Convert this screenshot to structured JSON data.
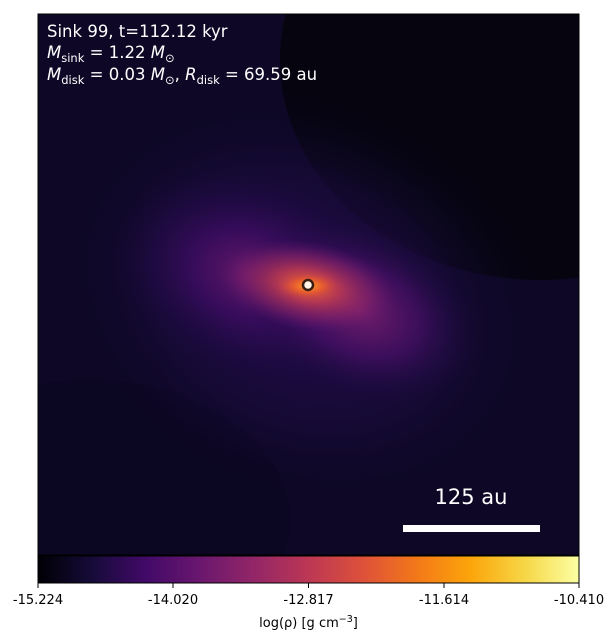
{
  "annotations": {
    "line1": "Sink 99, t=112.12 kyr",
    "line2_prefix": "M",
    "line2_sub": "sink",
    "line2_eq": " = 1.22 ",
    "line2_unit": "M",
    "line2_unit_sub": "⊙",
    "line3_m": "M",
    "line3_m_sub": "disk",
    "line3_m_eq": " = 0.03 ",
    "line3_m_unit": "M",
    "line3_m_unit_sub": "⊙",
    "line3_sep": ", ",
    "line3_r": "R",
    "line3_r_sub": "disk",
    "line3_r_eq": " = 69.59 au"
  },
  "scale_bar": {
    "label": "125 au",
    "length_au": 125
  },
  "colorbar": {
    "ticks": [
      "-15.224",
      "-14.020",
      "-12.817",
      "-11.614",
      "-10.410"
    ],
    "min": -15.224,
    "max": -10.41,
    "label_prefix": "log(ρ) [g cm",
    "label_sup": "−3",
    "label_suffix": "]",
    "colormap": "inferno"
  },
  "colors": {
    "background": "#05040f",
    "sink_fill": "#fff5e8",
    "sink_ring": "#3a1d12"
  }
}
